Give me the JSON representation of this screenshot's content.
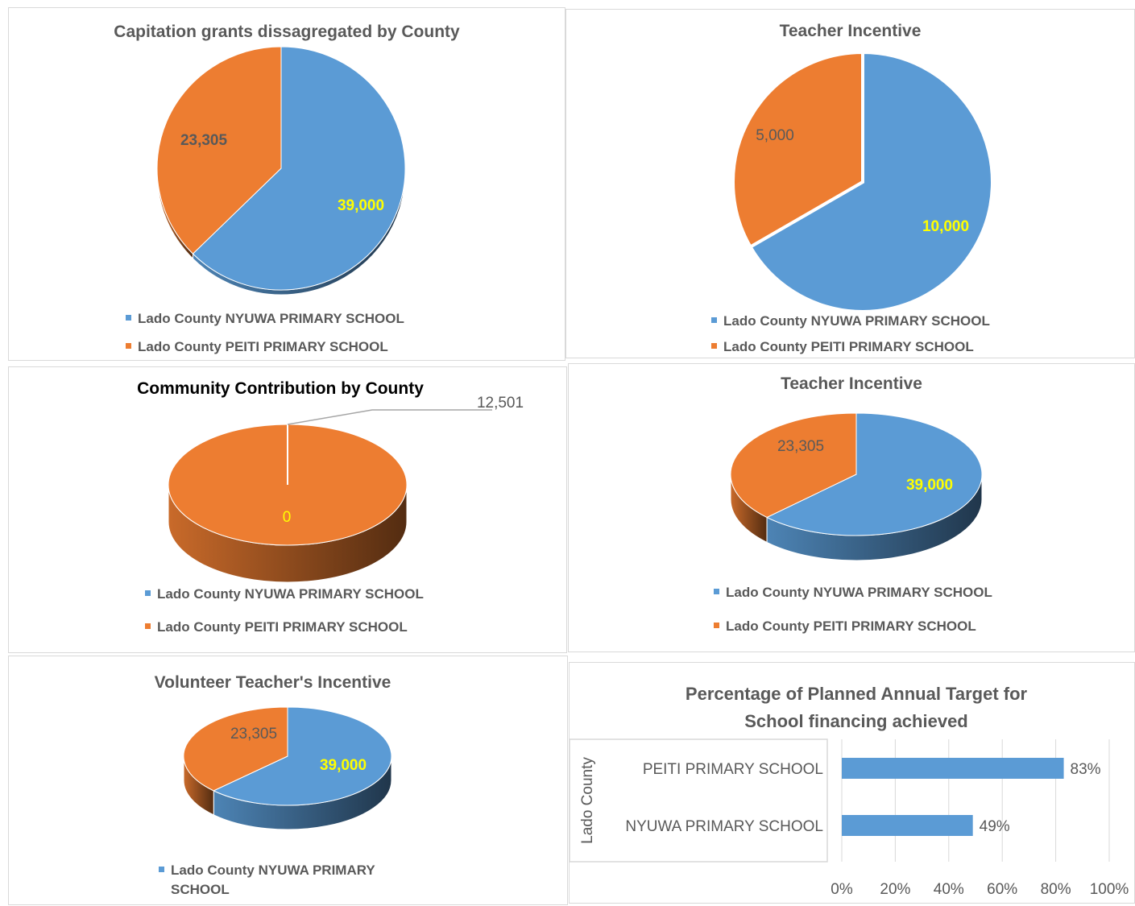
{
  "colors": {
    "blue": "#5b9bd5",
    "orange": "#ed7d31",
    "value_yellow": "#ffff00",
    "value_dark": "#595959"
  },
  "legend": {
    "nyuwa": "Lado County NYUWA PRIMARY SCHOOL",
    "peiti": "Lado County PEITI PRIMARY SCHOOL",
    "nyuwa_line1": "Lado County NYUWA PRIMARY",
    "nyuwa_line2": "SCHOOL"
  },
  "chart_data": [
    {
      "type": "pie",
      "title": "Capitation grants dissagregated by County",
      "categories": [
        "Lado County NYUWA PRIMARY SCHOOL",
        "Lado County PEITI PRIMARY SCHOOL"
      ],
      "values": [
        39000,
        23305
      ],
      "labels": [
        "39,000",
        "23,305"
      ],
      "legend": "bottom"
    },
    {
      "type": "pie",
      "title": "Teacher Incentive",
      "categories": [
        "Lado County NYUWA PRIMARY SCHOOL",
        "Lado County PEITI PRIMARY SCHOOL"
      ],
      "values": [
        10000,
        5000
      ],
      "labels": [
        "10,000",
        "5,000"
      ],
      "legend": "bottom"
    },
    {
      "type": "pie",
      "title": "Community Contribution by County",
      "categories": [
        "Lado County NYUWA PRIMARY SCHOOL",
        "Lado County PEITI PRIMARY SCHOOL"
      ],
      "values": [
        0,
        12501
      ],
      "labels": [
        "0",
        "12,501"
      ],
      "legend": "bottom"
    },
    {
      "type": "pie",
      "title": "Teacher Incentive",
      "categories": [
        "Lado County NYUWA PRIMARY SCHOOL",
        "Lado County PEITI PRIMARY SCHOOL"
      ],
      "values": [
        39000,
        23305
      ],
      "labels": [
        "39,000",
        "23,305"
      ],
      "legend": "bottom"
    },
    {
      "type": "pie",
      "title": "Volunteer Teacher's Incentive",
      "categories": [
        "Lado County NYUWA PRIMARY SCHOOL",
        "Lado County PEITI PRIMARY SCHOOL"
      ],
      "values": [
        39000,
        23305
      ],
      "labels": [
        "39,000",
        "23,305"
      ],
      "legend": "bottom"
    },
    {
      "type": "bar",
      "orientation": "horizontal",
      "title": "Percentage of Planned Annual Target for School financing achieved",
      "title_line1": "Percentage of Planned Annual Target for",
      "title_line2": "School financing achieved",
      "group_label": "Lado County",
      "categories": [
        "PEITI PRIMARY SCHOOL",
        "NYUWA PRIMARY SCHOOL"
      ],
      "values": [
        0.83,
        0.49
      ],
      "labels": [
        "83%",
        "49%"
      ],
      "xlim": [
        0,
        1
      ],
      "x_ticks": [
        "0%",
        "20%",
        "40%",
        "60%",
        "80%",
        "100%"
      ],
      "grid": true
    }
  ]
}
